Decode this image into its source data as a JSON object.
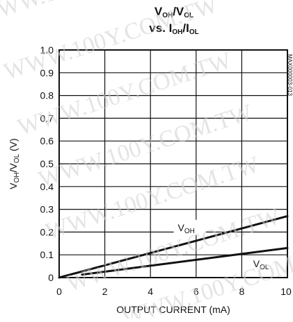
{
  "chart_data": {
    "type": "line",
    "title_line1": {
      "a": "V",
      "a_sub": "OH",
      "b": "/V",
      "b_sub": "OL"
    },
    "title_line2": {
      "pre": "vs. I",
      "a_sub": "OH",
      "mid": "/I",
      "b_sub": "OL"
    },
    "xlabel": "OUTPUT CURRENT (mA)",
    "ylabel": {
      "a": "V",
      "a_sub": "OH",
      "b": "/V",
      "b_sub": "OL",
      "unit": " (V)"
    },
    "xlim": [
      0,
      10
    ],
    "ylim": [
      0,
      1.0
    ],
    "x_ticks": [
      {
        "v": 0,
        "label": "0"
      },
      {
        "v": 2,
        "label": "2"
      },
      {
        "v": 4,
        "label": "4"
      },
      {
        "v": 6,
        "label": "6"
      },
      {
        "v": 8,
        "label": "8"
      },
      {
        "v": 10,
        "label": "10"
      }
    ],
    "y_ticks": [
      {
        "v": 0,
        "label": "0"
      },
      {
        "v": 0.1,
        "label": "0.1"
      },
      {
        "v": 0.2,
        "label": "0.2"
      },
      {
        "v": 0.3,
        "label": "0.3"
      },
      {
        "v": 0.4,
        "label": "0.4"
      },
      {
        "v": 0.5,
        "label": "0.5"
      },
      {
        "v": 0.6,
        "label": "0.6"
      },
      {
        "v": 0.7,
        "label": "0.7"
      },
      {
        "v": 0.8,
        "label": "0.8"
      },
      {
        "v": 0.9,
        "label": "0.9"
      },
      {
        "v": 1.0,
        "label": "1.0"
      }
    ],
    "grid": true,
    "series": [
      {
        "name": "VOH",
        "label_main": "V",
        "label_sub": "OH",
        "x": [
          0,
          2,
          4,
          6,
          8,
          10
        ],
        "y": [
          0,
          0.054,
          0.108,
          0.162,
          0.216,
          0.27
        ]
      },
      {
        "name": "VOL",
        "label_main": "V",
        "label_sub": "OL",
        "x": [
          1,
          2,
          4,
          6,
          8,
          10
        ],
        "y": [
          0.013,
          0.026,
          0.052,
          0.078,
          0.104,
          0.13
        ]
      }
    ],
    "annotations": [
      {
        "series": "VOH",
        "x": 5.2,
        "y": 0.205,
        "text": "VOH"
      },
      {
        "series": "VOL",
        "x": 8.5,
        "y": 0.045,
        "text": "VOL"
      }
    ],
    "side_code": "MAX000003-013",
    "watermark": "WWW.100Y.COM.TW",
    "colors": {
      "line": "#111111",
      "grid": "#111111",
      "watermark": "#cfcfcf"
    }
  }
}
